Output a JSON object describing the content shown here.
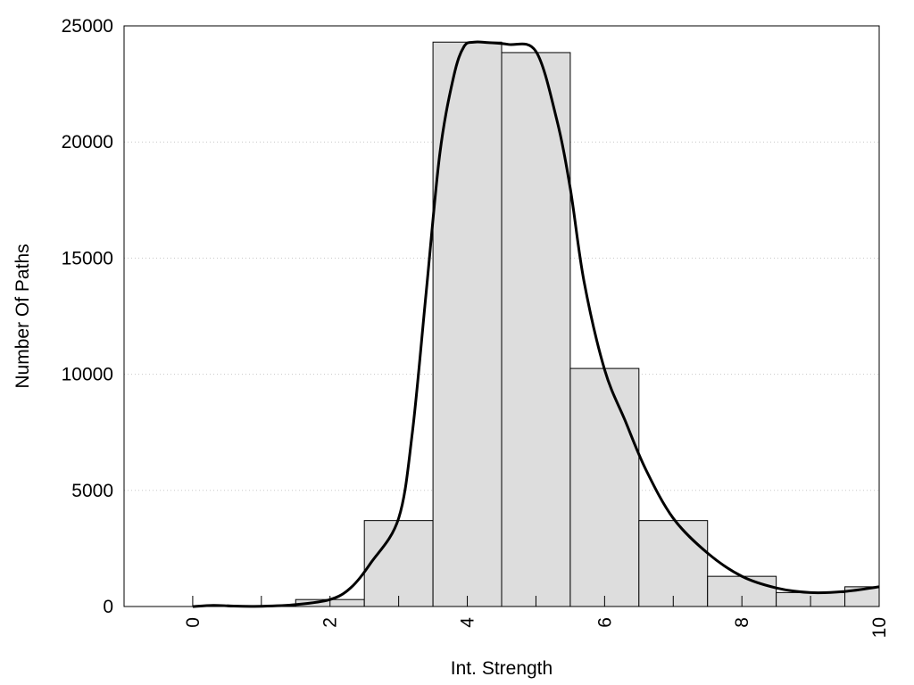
{
  "chart_data": {
    "type": "bar",
    "title": "",
    "xlabel": "Int. Strength",
    "ylabel": "Number Of Paths",
    "xlim": [
      -1,
      10
    ],
    "ylim": [
      0,
      25000
    ],
    "x_ticks": [
      0,
      2,
      4,
      6,
      8,
      10
    ],
    "y_ticks": [
      0,
      5000,
      10000,
      15000,
      20000,
      25000
    ],
    "grid": "horizontal dotted",
    "bar_color": "#dddddd",
    "bar_edge_color": "#000000",
    "line_color": "#000000",
    "bars": [
      {
        "x": 0,
        "value": 0
      },
      {
        "x": 1,
        "value": 0
      },
      {
        "x": 2,
        "value": 300
      },
      {
        "x": 3,
        "value": 3700
      },
      {
        "x": 4,
        "value": 24300
      },
      {
        "x": 5,
        "value": 23850
      },
      {
        "x": 6,
        "value": 10250
      },
      {
        "x": 7,
        "value": 3700
      },
      {
        "x": 8,
        "value": 1300
      },
      {
        "x": 9,
        "value": 600
      },
      {
        "x": 10,
        "value": 850
      }
    ],
    "curve": {
      "x": [
        0,
        0.3,
        0.6,
        1,
        1.5,
        2,
        2.3,
        2.6,
        3,
        3.2,
        3.4,
        3.6,
        3.8,
        3.95,
        4.1,
        4.3,
        4.6,
        5,
        5.3,
        5.5,
        5.7,
        6,
        6.3,
        6.6,
        7,
        7.5,
        8,
        8.5,
        9,
        9.5,
        10
      ],
      "y": [
        0,
        50,
        20,
        10,
        80,
        300,
        800,
        1900,
        3800,
        7500,
        13500,
        19500,
        22800,
        24100,
        24300,
        24280,
        24200,
        23900,
        21000,
        18000,
        14000,
        10200,
        8000,
        5900,
        3800,
        2300,
        1300,
        800,
        600,
        650,
        850
      ]
    }
  }
}
